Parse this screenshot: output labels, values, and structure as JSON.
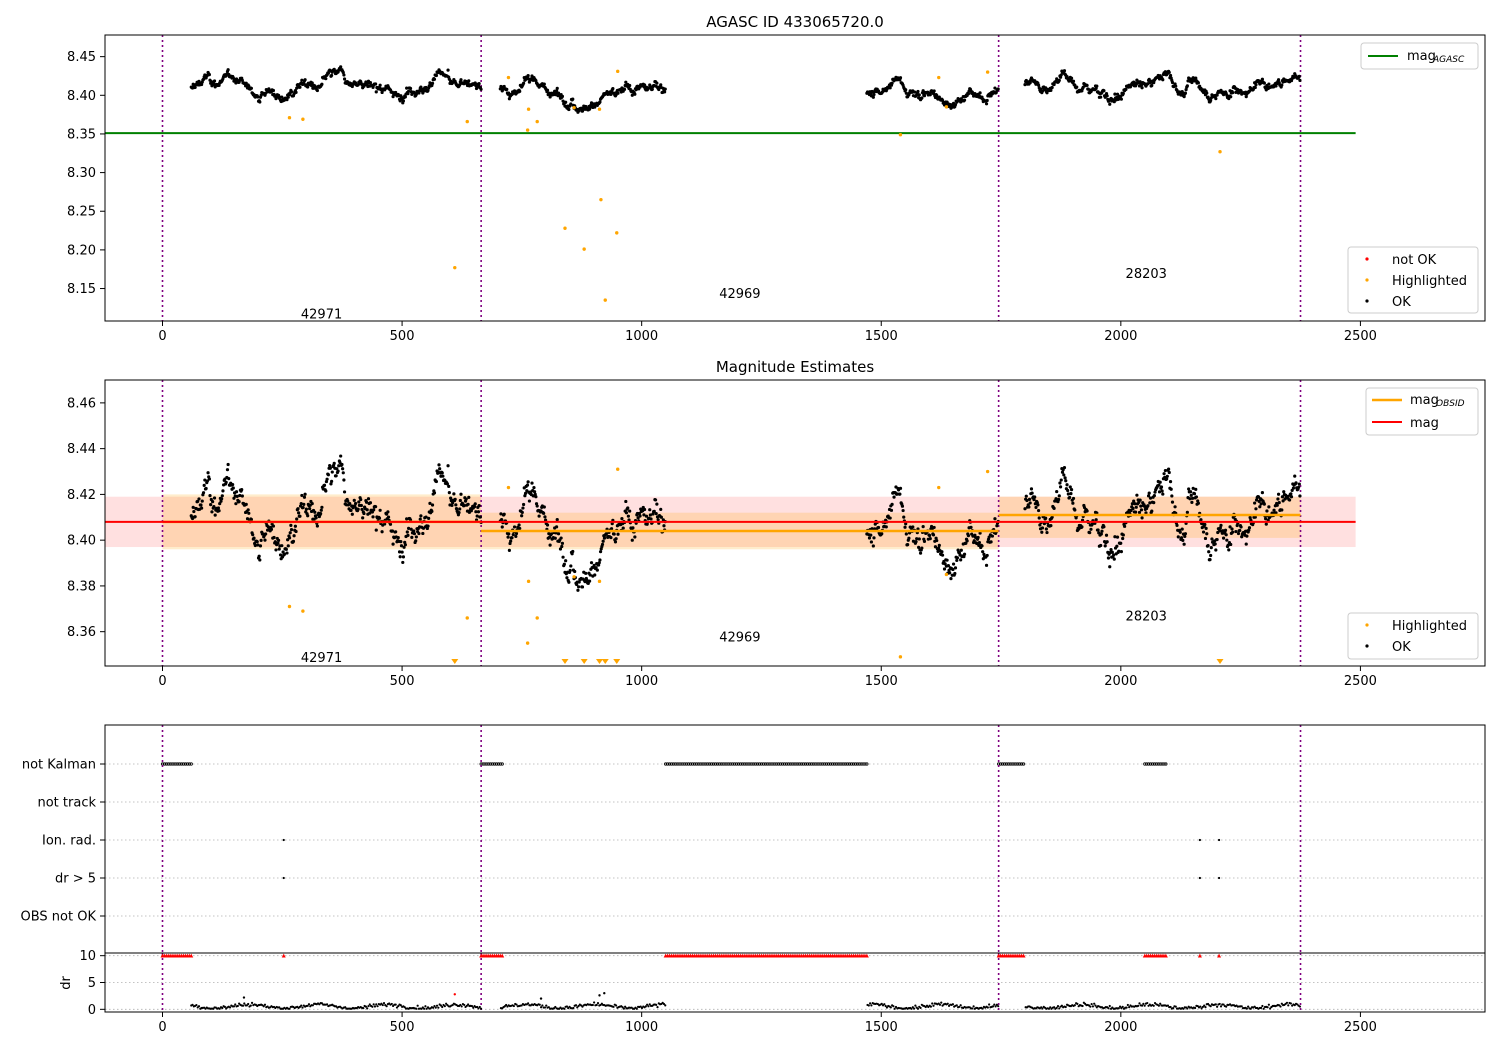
{
  "figure": {
    "title": "AGASC ID 433065720.0"
  },
  "chart_data": [
    {
      "type": "scatter",
      "title": "",
      "xlabel": "",
      "ylabel": "",
      "xlim": [
        -120,
        2760
      ],
      "ylim": [
        8.108,
        8.478
      ],
      "xticks": [
        0,
        500,
        1000,
        1500,
        2000,
        2500
      ],
      "yticks": [
        8.15,
        8.2,
        8.25,
        8.3,
        8.35,
        8.4,
        8.45
      ],
      "grid": false,
      "legend_placement": "top-right and bottom-right",
      "agasc_mag": 8.351,
      "agasc_line_x": [
        -120,
        2490
      ],
      "obsid_boundaries": [
        0,
        665,
        1745,
        2375
      ],
      "obsids": [
        {
          "label": "42971",
          "x": 332,
          "y": 8.118,
          "range": [
            0,
            665
          ]
        },
        {
          "label": "42969",
          "x": 1205,
          "y": 8.144,
          "range": [
            665,
            1745
          ]
        },
        {
          "label": "28203",
          "x": 2053,
          "y": 8.17,
          "range": [
            1745,
            2375
          ]
        }
      ],
      "ok_segments": [
        {
          "start": 60,
          "end": 665,
          "base": 8.41
        },
        {
          "start": 705,
          "end": 1050,
          "base": 8.403
        },
        {
          "start": 1470,
          "end": 1745,
          "base": 8.402
        },
        {
          "start": 1800,
          "end": 2375,
          "base": 8.412
        }
      ],
      "highlighted_points": [
        {
          "x": 265,
          "y": 8.371
        },
        {
          "x": 293,
          "y": 8.369
        },
        {
          "x": 610,
          "y": 8.177
        },
        {
          "x": 636,
          "y": 8.366
        },
        {
          "x": 722,
          "y": 8.423
        },
        {
          "x": 762,
          "y": 8.355
        },
        {
          "x": 764,
          "y": 8.382
        },
        {
          "x": 782,
          "y": 8.366
        },
        {
          "x": 840,
          "y": 8.228
        },
        {
          "x": 859,
          "y": 8.384
        },
        {
          "x": 880,
          "y": 8.201
        },
        {
          "x": 912,
          "y": 8.382
        },
        {
          "x": 915,
          "y": 8.265
        },
        {
          "x": 924,
          "y": 8.135
        },
        {
          "x": 948,
          "y": 8.222
        },
        {
          "x": 950,
          "y": 8.431
        },
        {
          "x": 1540,
          "y": 8.349
        },
        {
          "x": 1620,
          "y": 8.423
        },
        {
          "x": 1636,
          "y": 8.385
        },
        {
          "x": 1722,
          "y": 8.43
        },
        {
          "x": 2207,
          "y": 8.327
        }
      ],
      "legend_top": [
        "mag_AGASC"
      ],
      "legend_bottom": [
        "not OK",
        "Highlighted",
        "OK"
      ],
      "colors": {
        "ok": "#000000",
        "highlighted": "#ffa500",
        "not_ok": "#ff0000",
        "agasc": "#008000",
        "boundary": "#800080"
      }
    },
    {
      "type": "scatter",
      "title": "Magnitude Estimates",
      "xlabel": "",
      "ylabel": "",
      "xlim": [
        -120,
        2760
      ],
      "ylim": [
        8.345,
        8.47
      ],
      "xticks": [
        0,
        500,
        1000,
        1500,
        2000,
        2500
      ],
      "yticks": [
        8.36,
        8.38,
        8.4,
        8.42,
        8.44,
        8.46
      ],
      "grid": false,
      "mag": 8.408,
      "mag_band": [
        8.397,
        8.419
      ],
      "mag_line_x": [
        -120,
        2490
      ],
      "obsid_mags": [
        {
          "range": [
            0,
            665
          ],
          "mag": 8.408,
          "band": [
            8.396,
            8.42
          ]
        },
        {
          "range": [
            665,
            1745
          ],
          "mag": 8.404,
          "band": [
            8.396,
            8.412
          ]
        },
        {
          "range": [
            1745,
            2375
          ],
          "mag": 8.411,
          "band": [
            8.401,
            8.419
          ]
        }
      ],
      "obsids": [
        {
          "label": "42971",
          "x": 332,
          "y": 8.349
        },
        {
          "label": "42969",
          "x": 1205,
          "y": 8.358
        },
        {
          "label": "28203",
          "x": 2053,
          "y": 8.367
        }
      ],
      "clipped_markers_x": [
        610,
        840,
        880,
        912,
        924,
        948,
        2207
      ],
      "legend_top": [
        "mag_OBSID",
        "mag"
      ],
      "legend_bottom": [
        "Highlighted",
        "OK"
      ],
      "colors": {
        "obsid": "#ffa500",
        "mag": "#ff0000"
      }
    },
    {
      "type": "scatter",
      "title": "",
      "xlabel": "",
      "ylabel": "",
      "xlim": [
        -120,
        2760
      ],
      "categories": [
        "not Kalman",
        "not track",
        "Ion. rad.",
        "dr > 5",
        "OBS not OK"
      ],
      "flags": {
        "not Kalman": [
          [
            0,
            60
          ],
          [
            665,
            710
          ],
          [
            1050,
            1470
          ],
          [
            1745,
            1800
          ],
          [
            2050,
            2095
          ]
        ],
        "not track": [],
        "Ion. rad.": [
          253,
          2165,
          2205
        ],
        "dr > 5": [
          253,
          2165,
          2205
        ],
        "OBS not OK": []
      },
      "grid": true
    },
    {
      "type": "scatter",
      "title": "",
      "xlabel": "",
      "ylabel": "dr",
      "xlim": [
        -120,
        2760
      ],
      "ylim": [
        -0.5,
        10.5
      ],
      "xticks": [
        0,
        500,
        1000,
        1500,
        2000,
        2500
      ],
      "yticks": [
        0,
        5,
        10
      ],
      "clip_value": 10,
      "grid": true
    }
  ],
  "labels": {
    "legend_not_ok": "not OK",
    "legend_highlighted": "Highlighted",
    "legend_ok": "OK",
    "legend_mag": "mag",
    "legend_mag_sub_agasc": "AGASC",
    "legend_mag_sub_obsid": "OBSID",
    "dr_label": "dr"
  }
}
